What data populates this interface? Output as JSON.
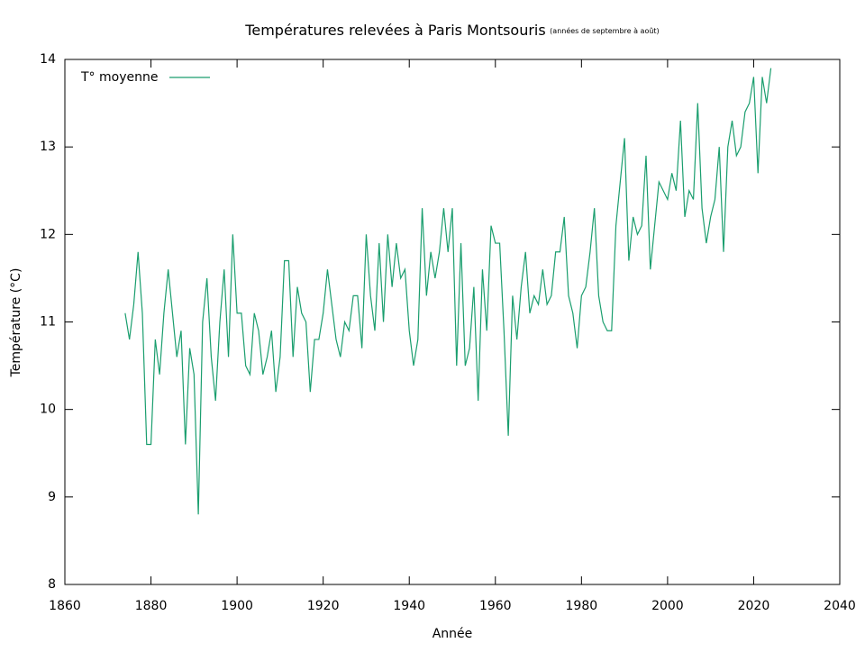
{
  "chart_data": {
    "type": "line",
    "title": "Températures relevées à Paris Montsouris",
    "subtitle": "(années de septembre à août)",
    "xlabel": "Année",
    "ylabel": "Température (°C)",
    "x": [
      1874,
      1875,
      1876,
      1877,
      1878,
      1879,
      1880,
      1881,
      1882,
      1883,
      1884,
      1885,
      1886,
      1887,
      1888,
      1889,
      1890,
      1891,
      1892,
      1893,
      1894,
      1895,
      1896,
      1897,
      1898,
      1899,
      1900,
      1901,
      1902,
      1903,
      1904,
      1905,
      1906,
      1907,
      1908,
      1909,
      1910,
      1911,
      1912,
      1913,
      1914,
      1915,
      1916,
      1917,
      1918,
      1919,
      1920,
      1921,
      1922,
      1923,
      1924,
      1925,
      1926,
      1927,
      1928,
      1929,
      1930,
      1931,
      1932,
      1933,
      1934,
      1935,
      1936,
      1937,
      1938,
      1939,
      1940,
      1941,
      1942,
      1943,
      1944,
      1945,
      1946,
      1947,
      1948,
      1949,
      1950,
      1951,
      1952,
      1953,
      1954,
      1955,
      1956,
      1957,
      1958,
      1959,
      1960,
      1961,
      1962,
      1963,
      1964,
      1965,
      1966,
      1967,
      1968,
      1969,
      1970,
      1971,
      1972,
      1973,
      1974,
      1975,
      1976,
      1977,
      1978,
      1979,
      1980,
      1981,
      1982,
      1983,
      1984,
      1985,
      1986,
      1987,
      1988,
      1989,
      1990,
      1991,
      1992,
      1993,
      1994,
      1995,
      1996,
      1997,
      1998,
      1999,
      2000,
      2001,
      2002,
      2003,
      2004,
      2005,
      2006,
      2007,
      2008,
      2009,
      2010,
      2011,
      2012,
      2013,
      2014,
      2015,
      2016,
      2017,
      2018,
      2019,
      2020,
      2021,
      2022,
      2023,
      2024
    ],
    "series": [
      {
        "name": "T° moyenne",
        "color": "#1a9e6e",
        "values": [
          11.1,
          10.8,
          11.2,
          11.8,
          11.1,
          9.6,
          9.6,
          10.8,
          10.4,
          11.1,
          11.6,
          11.1,
          10.6,
          10.9,
          9.6,
          10.7,
          10.4,
          8.8,
          11.0,
          11.5,
          10.6,
          10.1,
          11.0,
          11.6,
          10.6,
          12.0,
          11.1,
          11.1,
          10.5,
          10.4,
          11.1,
          10.9,
          10.4,
          10.6,
          10.9,
          10.2,
          10.6,
          11.7,
          11.7,
          10.6,
          11.4,
          11.1,
          11.0,
          10.2,
          10.8,
          10.8,
          11.1,
          11.6,
          11.2,
          10.8,
          10.6,
          11.0,
          10.9,
          11.3,
          11.3,
          10.7,
          12.0,
          11.3,
          10.9,
          11.9,
          11.0,
          12.0,
          11.4,
          11.9,
          11.5,
          11.6,
          10.9,
          10.5,
          10.8,
          12.3,
          11.3,
          11.8,
          11.5,
          11.8,
          12.3,
          11.8,
          12.3,
          10.5,
          11.9,
          10.5,
          10.7,
          11.4,
          10.1,
          11.6,
          10.9,
          12.1,
          11.9,
          11.9,
          10.9,
          9.7,
          11.3,
          10.8,
          11.4,
          11.8,
          11.1,
          11.3,
          11.2,
          11.6,
          11.2,
          11.3,
          11.8,
          11.8,
          12.2,
          11.3,
          11.1,
          10.7,
          11.3,
          11.4,
          11.8,
          12.3,
          11.3,
          11.0,
          10.9,
          10.9,
          12.1,
          12.6,
          13.1,
          11.7,
          12.2,
          12.0,
          12.1,
          12.9,
          11.6,
          12.1,
          12.6,
          12.5,
          12.4,
          12.7,
          12.5,
          13.3,
          12.2,
          12.5,
          12.4,
          13.5,
          12.3,
          11.9,
          12.2,
          12.4,
          13.0,
          11.8,
          13.0,
          13.3,
          12.9,
          13.0,
          13.4,
          13.5,
          13.8,
          12.7,
          13.8,
          13.5,
          13.9
        ]
      }
    ],
    "xlim": [
      1860,
      2040
    ],
    "xticks": [
      1860,
      1880,
      1900,
      1920,
      1940,
      1960,
      1980,
      2000,
      2020,
      2040
    ],
    "ylim": [
      8,
      14
    ],
    "yticks": [
      8,
      9,
      10,
      11,
      12,
      13,
      14
    ],
    "legend": "top-left",
    "grid": false
  }
}
